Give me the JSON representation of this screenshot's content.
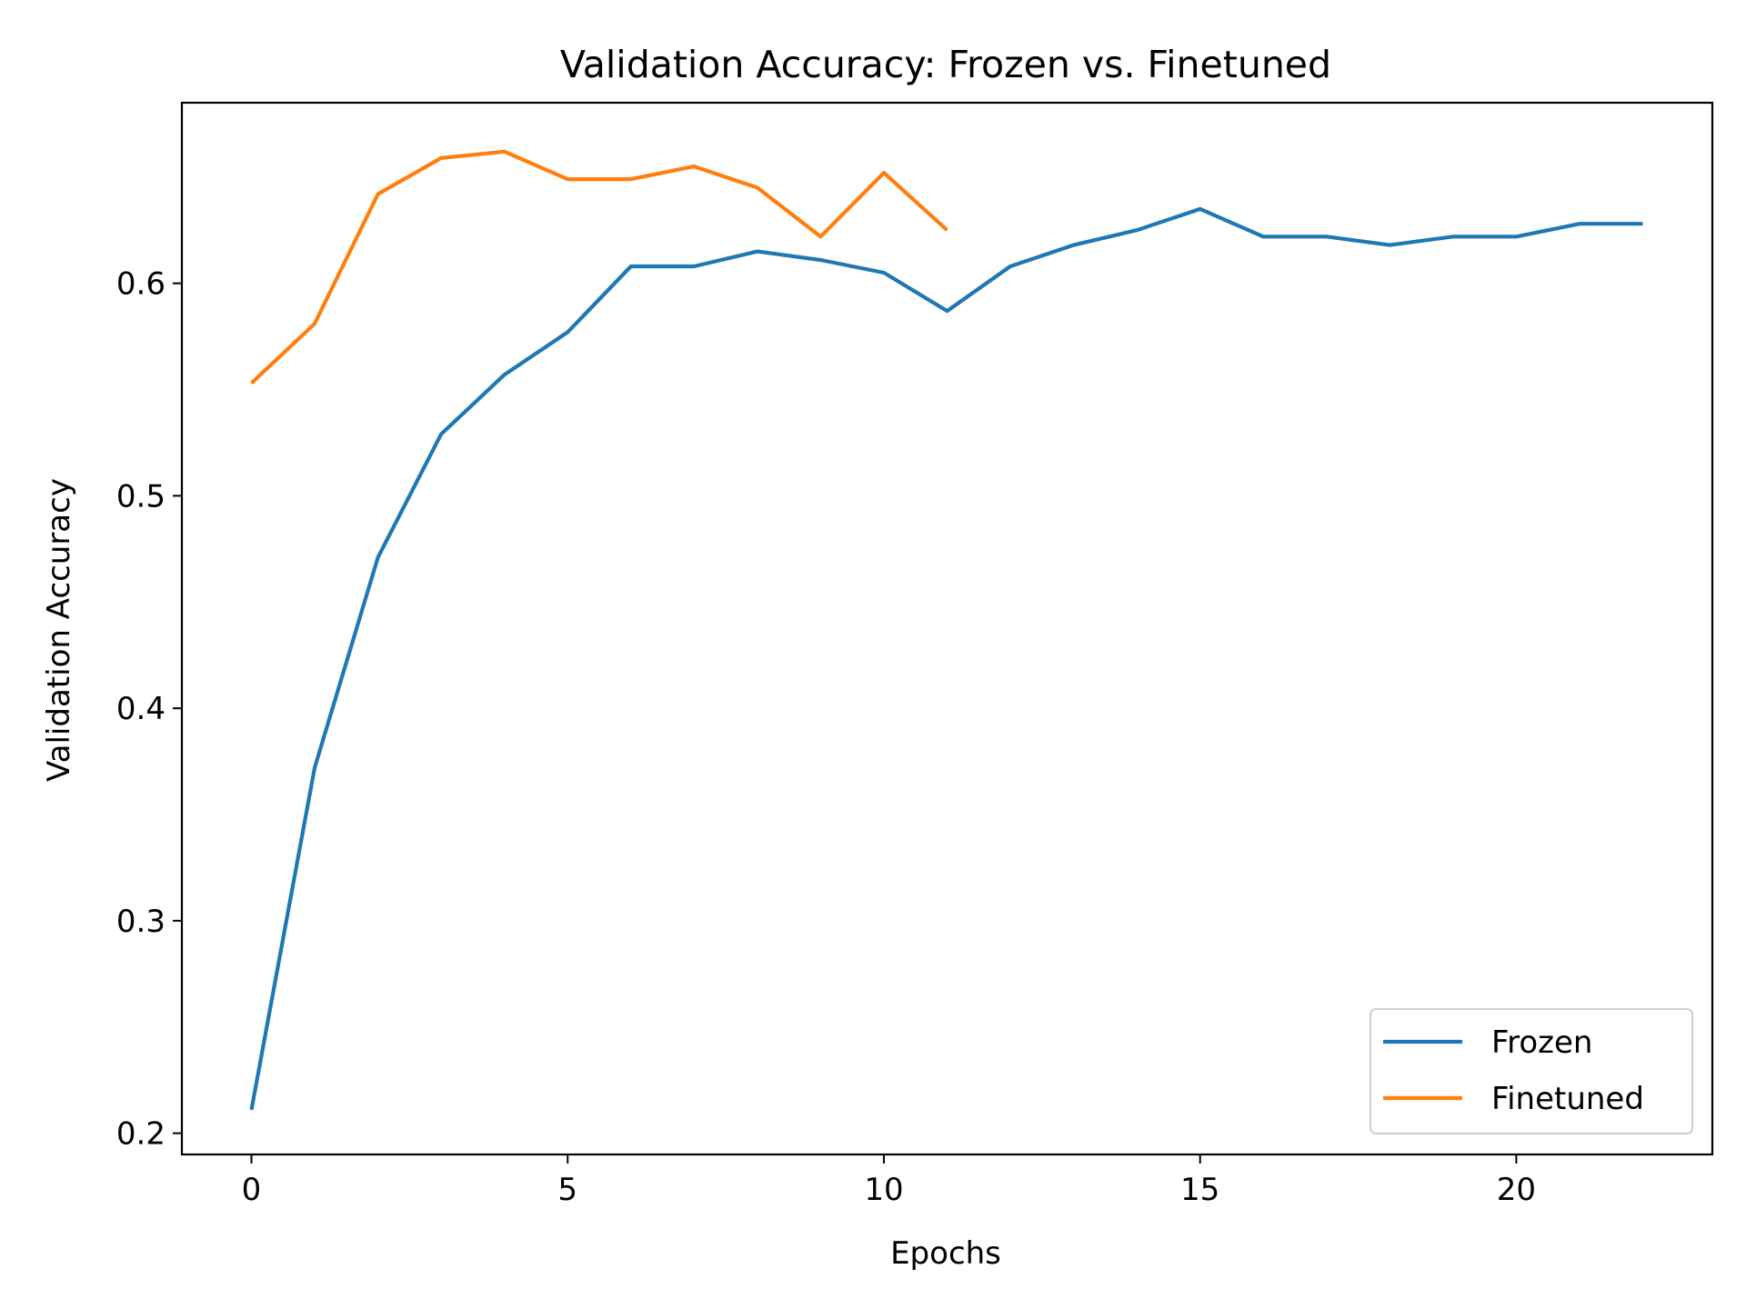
{
  "chart_data": {
    "type": "line",
    "title": "Validation Accuracy: Frozen vs. Finetuned",
    "xlabel": "Epochs",
    "ylabel": "Validation Accuracy",
    "xlim": [
      -1.1,
      23.1
    ],
    "ylim": [
      0.19,
      0.685
    ],
    "xticks": [
      0,
      5,
      10,
      15,
      20
    ],
    "xtick_labels": [
      "0",
      "5",
      "10",
      "15",
      "20"
    ],
    "yticks": [
      0.2,
      0.3,
      0.4,
      0.5,
      0.6
    ],
    "ytick_labels": [
      "0.2",
      "0.3",
      "0.4",
      "0.5",
      "0.6"
    ],
    "grid": false,
    "legend": {
      "placement": "lower-right",
      "entries": [
        "Frozen",
        "Finetuned"
      ]
    },
    "series": [
      {
        "name": "Frozen",
        "color": "#1f77b4",
        "x": [
          0,
          1,
          2,
          3,
          4,
          5,
          6,
          7,
          8,
          9,
          10,
          11,
          12,
          13,
          14,
          15,
          16,
          17,
          18,
          19,
          20,
          21,
          22
        ],
        "y": [
          0.211,
          0.372,
          0.471,
          0.529,
          0.557,
          0.577,
          0.608,
          0.608,
          0.615,
          0.611,
          0.605,
          0.587,
          0.608,
          0.618,
          0.625,
          0.635,
          0.622,
          0.622,
          0.618,
          0.622,
          0.622,
          0.628,
          0.628
        ]
      },
      {
        "name": "Finetuned",
        "color": "#ff7f0e",
        "x": [
          0,
          1,
          2,
          3,
          4,
          5,
          6,
          7,
          8,
          9,
          10,
          11
        ],
        "y": [
          0.553,
          0.581,
          0.642,
          0.659,
          0.662,
          0.649,
          0.649,
          0.655,
          0.645,
          0.622,
          0.652,
          0.625
        ]
      }
    ]
  }
}
